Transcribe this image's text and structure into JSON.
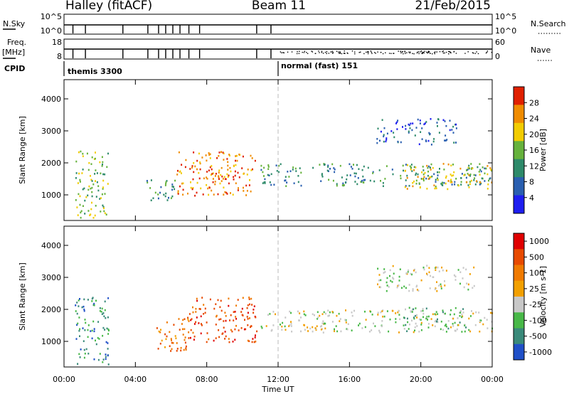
{
  "header": {
    "station": "Halley (fitACF)",
    "beam": "Beam 11",
    "date": "21/Feb/2015"
  },
  "status_panels": {
    "nsky_label": "N.Sky",
    "nsky_ticks": [
      "10^5",
      "10^0"
    ],
    "nsearch_label": "N.Search",
    "nsearch_ticks": [
      "10^5",
      "10^0"
    ],
    "freq_label": "Freq.",
    "freq_unit": "[MHz]",
    "freq_ticks": [
      "18",
      "8"
    ],
    "nave_label": "Nave",
    "nave_ticks": [
      "60",
      "0"
    ],
    "cpid_label": "CPID",
    "cpid_segments": [
      {
        "name": "themis 3300",
        "start_hour": 0
      },
      {
        "name": "normal (fast) 151",
        "start_hour": 12
      }
    ]
  },
  "chart_data": [
    {
      "type": "heatmap",
      "panel": "power",
      "ylabel": "Slant Range [km]",
      "y_ticks": [
        1000,
        2000,
        3000,
        4000
      ],
      "ylim": [
        200,
        4600
      ],
      "xlim": [
        0,
        24
      ],
      "colorbar": {
        "label": "Power [dB]",
        "ticks": [
          "4",
          "8",
          "12",
          "16",
          "20",
          "24",
          "28"
        ],
        "colors": [
          "#1e1ef0",
          "#2a5fb0",
          "#2e8a6a",
          "#66b23c",
          "#f2cc00",
          "#f08c00",
          "#e02000"
        ]
      },
      "scatter_regions": [
        {
          "t": [
            0.6,
            2.5
          ],
          "r": [
            300,
            2400
          ],
          "level": 3
        },
        {
          "t": [
            4.6,
            6.2
          ],
          "r": [
            700,
            1500
          ],
          "level": 2
        },
        {
          "t": [
            6.3,
            10.7
          ],
          "r": [
            1000,
            2400
          ],
          "level": 5
        },
        {
          "t": [
            7.4,
            9.8
          ],
          "r": [
            1500,
            1800
          ],
          "level": 6
        },
        {
          "t": [
            11.0,
            24.0
          ],
          "r": [
            1300,
            2000
          ],
          "level": 2
        },
        {
          "t": [
            19.0,
            24.0
          ],
          "r": [
            1200,
            2000
          ],
          "level": 4
        },
        {
          "t": [
            17.5,
            22.0
          ],
          "r": [
            2600,
            3400
          ],
          "level": 1
        }
      ]
    },
    {
      "type": "heatmap",
      "panel": "velocity",
      "ylabel": "Slant Range [km]",
      "xlabel": "Time UT",
      "x_ticks": [
        "00:00",
        "04:00",
        "08:00",
        "12:00",
        "16:00",
        "20:00",
        "00:00"
      ],
      "y_ticks": [
        1000,
        2000,
        3000,
        4000
      ],
      "ylim": [
        200,
        4600
      ],
      "xlim": [
        0,
        24
      ],
      "colorbar": {
        "label": "Velocity [m s-1]",
        "ticks": [
          "1000",
          "500",
          "100",
          "25",
          "-25",
          "-100",
          "-500",
          "-1000"
        ],
        "colors": [
          "#2050c8",
          "#3a8a7a",
          "#48b848",
          "#c8c8c8",
          "#f2a000",
          "#f07a00",
          "#e84a00",
          "#e00000"
        ]
      },
      "scatter_regions": [
        {
          "t": [
            0.6,
            2.5
          ],
          "r": [
            300,
            2400
          ],
          "level": 1
        },
        {
          "t": [
            5.0,
            7.0
          ],
          "r": [
            700,
            1800
          ],
          "level": 5
        },
        {
          "t": [
            7.0,
            10.8
          ],
          "r": [
            1000,
            2400
          ],
          "level": 6
        },
        {
          "t": [
            11.0,
            24.0
          ],
          "r": [
            1300,
            2000
          ],
          "level": 3
        },
        {
          "t": [
            19.0,
            22.5
          ],
          "r": [
            1300,
            2100
          ],
          "level": 2
        },
        {
          "t": [
            17.5,
            23.0
          ],
          "r": [
            2600,
            3400
          ],
          "level": 3
        }
      ]
    }
  ]
}
